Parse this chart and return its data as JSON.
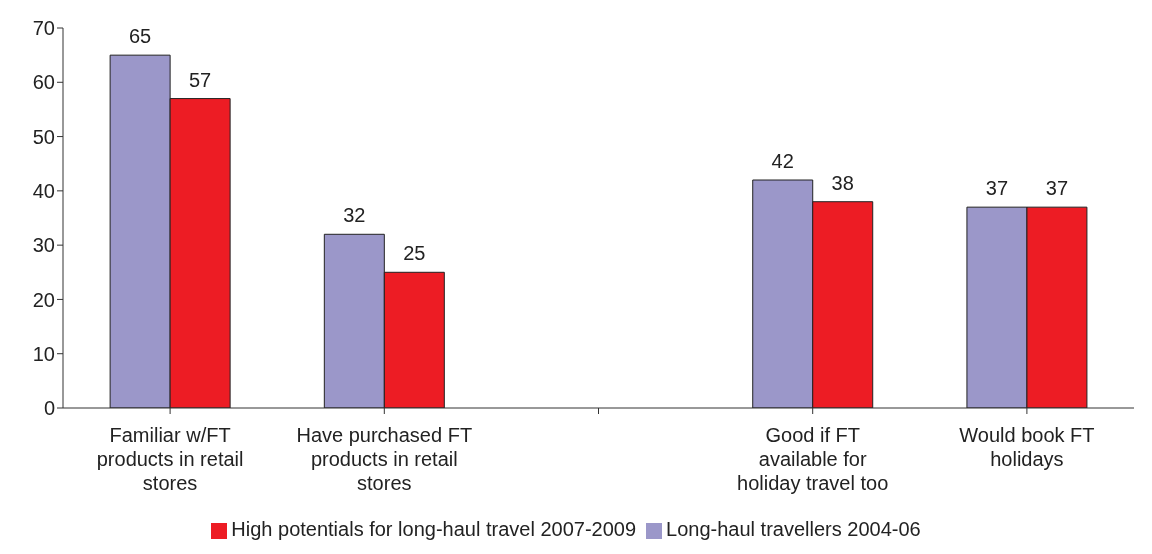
{
  "chart_data": {
    "type": "bar",
    "categories": [
      "Familiar w/FT products in retail stores",
      "Have purchased FT products in retail stores",
      null,
      "Good if FT available for holiday travel too",
      "Would book FT holidays"
    ],
    "series": [
      {
        "name": "Long-haul travellers 2004-06",
        "color": "#9b97c9",
        "values": [
          65,
          32,
          null,
          42,
          37
        ]
      },
      {
        "name": "High potentials for long-haul travel 2007-2009",
        "color": "#ed1c24",
        "values": [
          57,
          25,
          null,
          38,
          37
        ]
      }
    ],
    "ylim": [
      0,
      70
    ],
    "yticks": [
      0,
      10,
      20,
      30,
      40,
      50,
      60,
      70
    ],
    "grid": false,
    "legend": "bottom",
    "data_labels": true
  }
}
